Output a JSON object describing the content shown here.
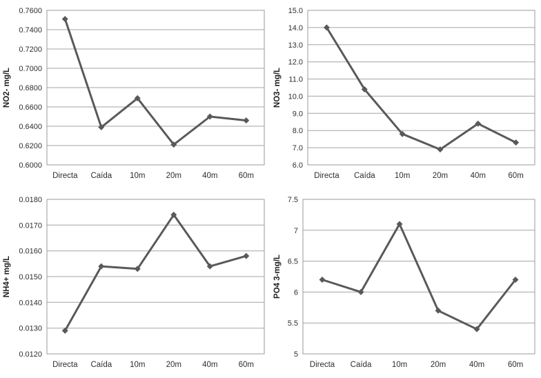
{
  "page": {
    "background_color": "#ffffff",
    "text_color": "#2e2e2e",
    "gridline_color": "#a3a3a3",
    "series_color": "#595959"
  },
  "chart_data": [
    {
      "id": "no2-chart",
      "type": "line",
      "title": "",
      "xlabel": "",
      "ylabel": "NO2- mg/L",
      "categories": [
        "Directa",
        "Caída",
        "10m",
        "20m",
        "40m",
        "60m"
      ],
      "values": [
        0.751,
        0.639,
        0.669,
        0.621,
        0.65,
        0.646
      ],
      "ylim": [
        0.6,
        0.76
      ],
      "yticks": [
        0.6,
        0.62,
        0.64,
        0.66,
        0.68,
        0.7,
        0.72,
        0.74,
        0.76
      ],
      "ytick_labels": [
        "0.6000",
        "0.6200",
        "0.6400",
        "0.6600",
        "0.6800",
        "0.7000",
        "0.7200",
        "0.7400",
        "0.7600"
      ],
      "grid": true,
      "legend": false,
      "line_color": "#595959",
      "marker": "diamond"
    },
    {
      "id": "no3-chart",
      "type": "line",
      "title": "",
      "xlabel": "",
      "ylabel": "NO3- mg/L",
      "categories": [
        "Directa",
        "Caída",
        "10m",
        "20m",
        "40m",
        "60m"
      ],
      "values": [
        14.0,
        10.4,
        7.8,
        6.9,
        8.4,
        7.3
      ],
      "ylim": [
        6.0,
        15.0
      ],
      "yticks": [
        6.0,
        7.0,
        8.0,
        9.0,
        10.0,
        11.0,
        12.0,
        13.0,
        14.0,
        15.0
      ],
      "ytick_labels": [
        "6.0",
        "7.0",
        "8.0",
        "9.0",
        "10.0",
        "11.0",
        "12.0",
        "13.0",
        "14.0",
        "15.0"
      ],
      "grid": true,
      "legend": false,
      "line_color": "#595959",
      "marker": "diamond"
    },
    {
      "id": "nh4-chart",
      "type": "line",
      "title": "",
      "xlabel": "",
      "ylabel": "NH4+ mg/L",
      "categories": [
        "Directa",
        "Caída",
        "10m",
        "20m",
        "40m",
        "60m"
      ],
      "values": [
        0.0129,
        0.0154,
        0.0153,
        0.0174,
        0.0154,
        0.0158
      ],
      "ylim": [
        0.012,
        0.018
      ],
      "yticks": [
        0.012,
        0.013,
        0.014,
        0.015,
        0.016,
        0.017,
        0.018
      ],
      "ytick_labels": [
        "0.0120",
        "0.0130",
        "0.0140",
        "0.0150",
        "0.0160",
        "0.0170",
        "0.0180"
      ],
      "grid": true,
      "legend": false,
      "line_color": "#595959",
      "marker": "diamond"
    },
    {
      "id": "po4-chart",
      "type": "line",
      "title": "",
      "xlabel": "",
      "ylabel": "PO4 3-mg/L",
      "categories": [
        "Directa",
        "Caída",
        "10m",
        "20m",
        "40m",
        "60m"
      ],
      "values": [
        6.2,
        6.0,
        7.1,
        5.7,
        5.4,
        6.2
      ],
      "ylim": [
        5.0,
        7.5
      ],
      "yticks": [
        5.0,
        5.5,
        6.0,
        6.5,
        7.0,
        7.5
      ],
      "ytick_labels": [
        "5",
        "5.5",
        "6",
        "6.5",
        "7",
        "7.5"
      ],
      "grid": true,
      "legend": false,
      "line_color": "#595959",
      "marker": "diamond"
    }
  ]
}
